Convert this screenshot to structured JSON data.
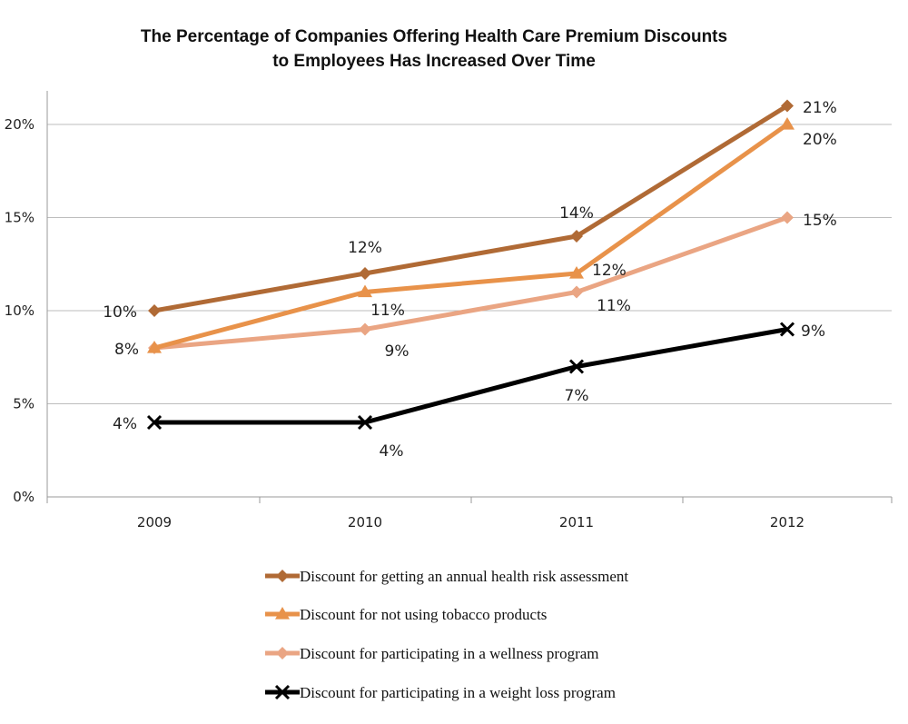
{
  "chart_data": {
    "type": "line",
    "title": "The Percentage of Companies Offering Health Care Premium Discounts",
    "subtitle": "to Employees Has Increased Over Time",
    "xlabel": "",
    "ylabel": "",
    "categories": [
      "2009",
      "2010",
      "2011",
      "2012"
    ],
    "ylim": [
      0,
      22
    ],
    "yticks": [
      {
        "value": 0,
        "label": "0%"
      },
      {
        "value": 5,
        "label": "5%"
      },
      {
        "value": 10,
        "label": "10%"
      },
      {
        "value": 15,
        "label": "15%"
      },
      {
        "value": 20,
        "label": "20%"
      }
    ],
    "grid": true,
    "legend_position": "bottom",
    "series": [
      {
        "name": "Discount for getting an annual health risk assessment",
        "values": [
          10,
          12,
          14,
          21
        ],
        "labels": [
          "10%",
          "12%",
          "14%",
          "21%"
        ],
        "color": "#b06a35",
        "marker": "diamond"
      },
      {
        "name": "Discount for not using tobacco products",
        "values": [
          8,
          11,
          12,
          20
        ],
        "labels": [
          "8%",
          "11%",
          "12%",
          "20%"
        ],
        "color": "#e8924a",
        "marker": "triangle"
      },
      {
        "name": "Discount for participating in a wellness program",
        "values": [
          8,
          9,
          11,
          15
        ],
        "labels": [
          "8%",
          "9%",
          "11%",
          "15%"
        ],
        "color": "#eaa583",
        "marker": "diamond"
      },
      {
        "name": "Discount for participating in a weight loss program",
        "values": [
          4,
          4,
          7,
          9
        ],
        "labels": [
          "4%",
          "4%",
          "7%",
          "9%"
        ],
        "color": "#000000",
        "marker": "x"
      }
    ]
  }
}
